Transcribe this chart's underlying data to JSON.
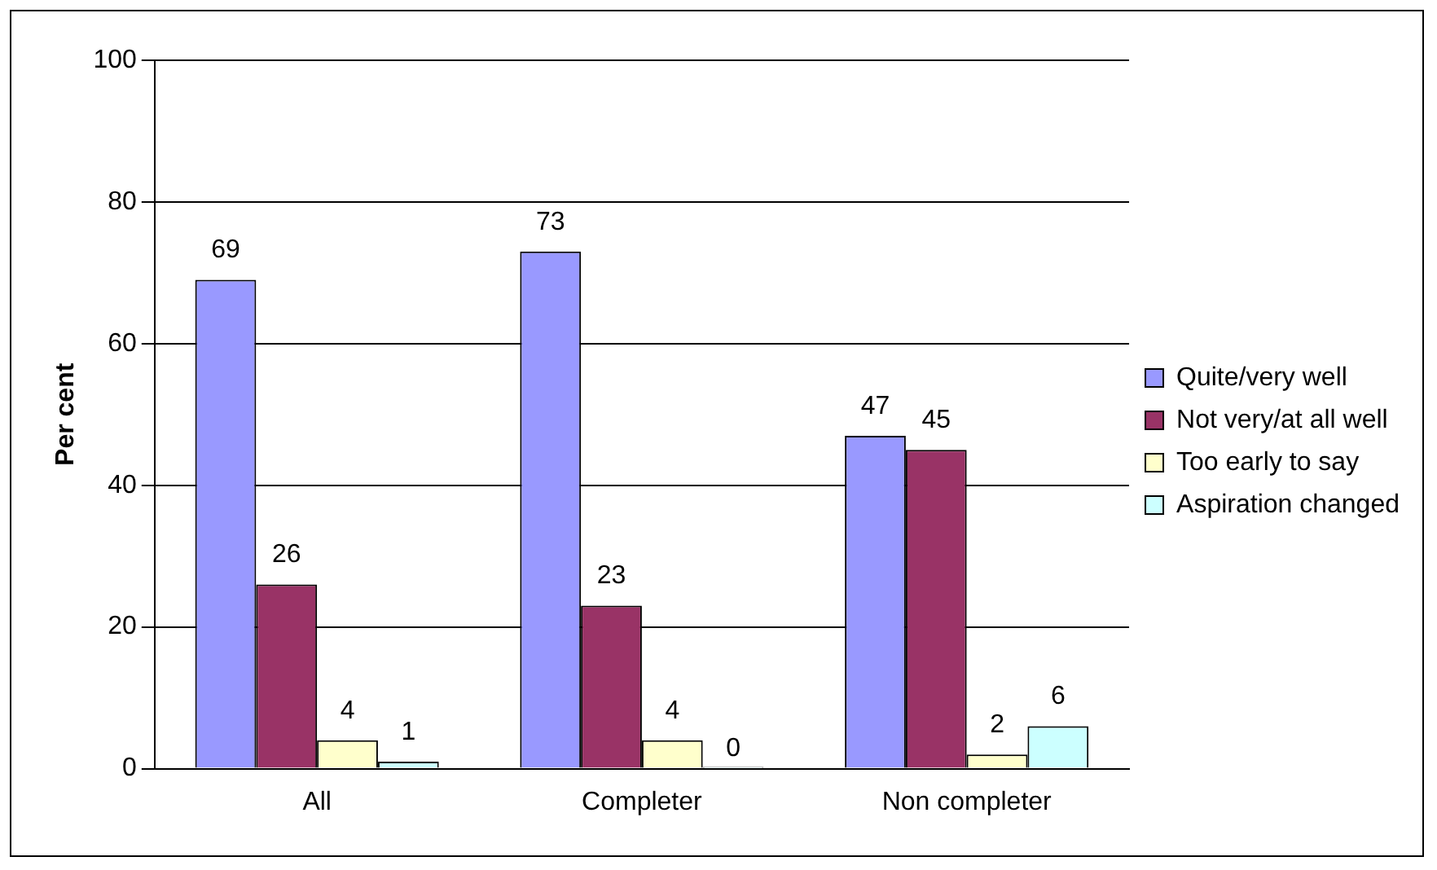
{
  "chart_data": {
    "type": "bar",
    "ylabel": "Per cent",
    "categories": [
      "All",
      "Completer",
      "Non completer"
    ],
    "series": [
      {
        "name": "Quite/very well",
        "color": "#9999ff",
        "values": [
          69,
          73,
          47
        ]
      },
      {
        "name": "Not very/at all well",
        "color": "#993366",
        "values": [
          26,
          23,
          45
        ]
      },
      {
        "name": "Too early to say",
        "color": "#ffffcc",
        "values": [
          4,
          4,
          2
        ]
      },
      {
        "name": "Aspiration changed",
        "color": "#ccffff",
        "values": [
          1,
          0,
          6
        ]
      }
    ],
    "ylim": [
      0,
      100
    ],
    "yticks": [
      0,
      20,
      40,
      60,
      80,
      100
    ],
    "grid": "y",
    "legend": "right",
    "data_labels": true
  }
}
